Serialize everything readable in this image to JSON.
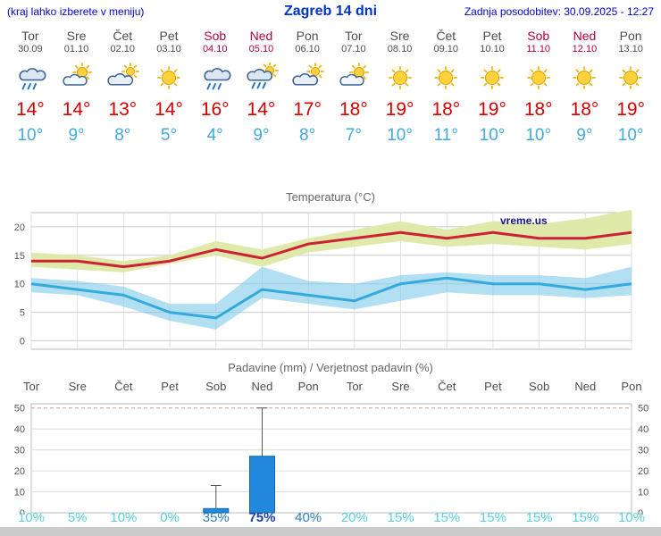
{
  "header": {
    "left_note": "(kraj lahko izberete v meniju)",
    "title": "Zagreb 14 dni",
    "updated": "Zadnja posodobitev: 30.09.2025 - 12:27"
  },
  "watermark": "vreme.us",
  "colors": {
    "link_blue": "#0000cc",
    "weekday": "#4d4d4d",
    "weekend": "#b40039",
    "temp_max_text": "#d40000",
    "temp_min_text": "#44aadd",
    "line_max": "#cc2233",
    "line_min": "#33aadd",
    "band_max": "#dde9a5",
    "band_min": "#7fc9e8",
    "bar_fill": "#2288dd",
    "prob_high": "#1c3faa",
    "prob_mid": "#2f7fbe",
    "prob_low": "#56cfe8"
  },
  "forecast": {
    "days": [
      {
        "name": "Tor",
        "date": "30.09",
        "weekend": false,
        "icon": "rain",
        "tmax": "14°",
        "tmin": "10°"
      },
      {
        "name": "Sre",
        "date": "01.10",
        "weekend": false,
        "icon": "partly-cloudy",
        "tmax": "14°",
        "tmin": "9°"
      },
      {
        "name": "Čet",
        "date": "02.10",
        "weekend": false,
        "icon": "mostly-cloudy",
        "tmax": "13°",
        "tmin": "8°"
      },
      {
        "name": "Pet",
        "date": "03.10",
        "weekend": false,
        "icon": "sunny",
        "tmax": "14°",
        "tmin": "5°"
      },
      {
        "name": "Sob",
        "date": "04.10",
        "weekend": true,
        "icon": "rain",
        "tmax": "16°",
        "tmin": "4°"
      },
      {
        "name": "Ned",
        "date": "05.10",
        "weekend": true,
        "icon": "rain-sun",
        "tmax": "14°",
        "tmin": "9°"
      },
      {
        "name": "Pon",
        "date": "06.10",
        "weekend": false,
        "icon": "mostly-cloudy",
        "tmax": "17°",
        "tmin": "8°"
      },
      {
        "name": "Tor",
        "date": "07.10",
        "weekend": false,
        "icon": "partly-cloudy",
        "tmax": "18°",
        "tmin": "7°"
      },
      {
        "name": "Sre",
        "date": "08.10",
        "weekend": false,
        "icon": "sunny",
        "tmax": "19°",
        "tmin": "10°"
      },
      {
        "name": "Čet",
        "date": "09.10",
        "weekend": false,
        "icon": "sunny",
        "tmax": "18°",
        "tmin": "11°"
      },
      {
        "name": "Pet",
        "date": "10.10",
        "weekend": false,
        "icon": "sunny",
        "tmax": "19°",
        "tmin": "10°"
      },
      {
        "name": "Sob",
        "date": "11.10",
        "weekend": true,
        "icon": "sunny",
        "tmax": "18°",
        "tmin": "10°"
      },
      {
        "name": "Ned",
        "date": "12.10",
        "weekend": true,
        "icon": "sunny",
        "tmax": "18°",
        "tmin": "9°"
      },
      {
        "name": "Pon",
        "date": "13.10",
        "weekend": false,
        "icon": "sunny",
        "tmax": "19°",
        "tmin": "10°"
      }
    ]
  },
  "chart_data": [
    {
      "type": "line",
      "title": "Temperatura (°C)",
      "categories": [
        "Tor",
        "Sre",
        "Čet",
        "Pet",
        "Sob",
        "Ned",
        "Pon",
        "Tor",
        "Sre",
        "Čet",
        "Pet",
        "Sob",
        "Ned",
        "Pon"
      ],
      "ylim": [
        -1.5,
        22.5
      ],
      "yticks": [
        0,
        5,
        10,
        15,
        20
      ],
      "grid": true,
      "legend": "none",
      "series": [
        {
          "key": "tmax",
          "name": "Max temperatura",
          "values": [
            14,
            14,
            13,
            14,
            16,
            14.5,
            17,
            18,
            19,
            18,
            19,
            18,
            18,
            19
          ]
        },
        {
          "key": "tmin",
          "name": "Min temperatura",
          "values": [
            10,
            9,
            8,
            5,
            4,
            9,
            8,
            7,
            10,
            11,
            10,
            10,
            9,
            10
          ]
        },
        {
          "key": "max_upper",
          "name": "Max razpon zgoraj",
          "values": [
            15.5,
            15,
            14,
            15,
            17.5,
            16,
            18,
            19.5,
            21,
            19.5,
            21,
            20.5,
            21.5,
            23
          ]
        },
        {
          "key": "max_lower",
          "name": "Max razpon spodaj",
          "values": [
            13,
            12.5,
            12,
            13.5,
            15,
            13,
            15.5,
            16.5,
            17.5,
            16.5,
            17,
            16.5,
            16,
            17
          ]
        },
        {
          "key": "min_upper",
          "name": "Min razpon zgoraj",
          "values": [
            11,
            10.5,
            9.5,
            6.5,
            6.5,
            13,
            10.5,
            10,
            11.5,
            12,
            11.5,
            11.5,
            11,
            13
          ]
        },
        {
          "key": "min_lower",
          "name": "Min razpon spodaj",
          "values": [
            8.5,
            8,
            6,
            3.5,
            2,
            7.5,
            6.5,
            5.5,
            7,
            8.5,
            8,
            8,
            7.5,
            8
          ]
        }
      ]
    },
    {
      "type": "bar",
      "title": "Padavine (mm) / Verjetnost padavin (%)",
      "categories": [
        "Tor",
        "Sre",
        "Čet",
        "Pet",
        "Sob",
        "Ned",
        "Pon",
        "Tor",
        "Sre",
        "Čet",
        "Pet",
        "Sob",
        "Ned",
        "Pon"
      ],
      "weekend_flags": [
        false,
        false,
        false,
        false,
        true,
        true,
        false,
        false,
        false,
        false,
        false,
        true,
        true,
        false
      ],
      "ylim": [
        0,
        52
      ],
      "yticks": [
        0,
        10,
        20,
        30,
        40,
        50
      ],
      "values": [
        0,
        0,
        0,
        0,
        2,
        27,
        0,
        0,
        0,
        0,
        0,
        0,
        0,
        0
      ],
      "whiskers": [
        0,
        0,
        0,
        0,
        13,
        50,
        0,
        0,
        0,
        0,
        0,
        0,
        0,
        0
      ],
      "probabilities": [
        "10%",
        "5%",
        "10%",
        "0%",
        "35%",
        "75%",
        "40%",
        "20%",
        "15%",
        "15%",
        "15%",
        "15%",
        "15%",
        "10%"
      ]
    }
  ]
}
